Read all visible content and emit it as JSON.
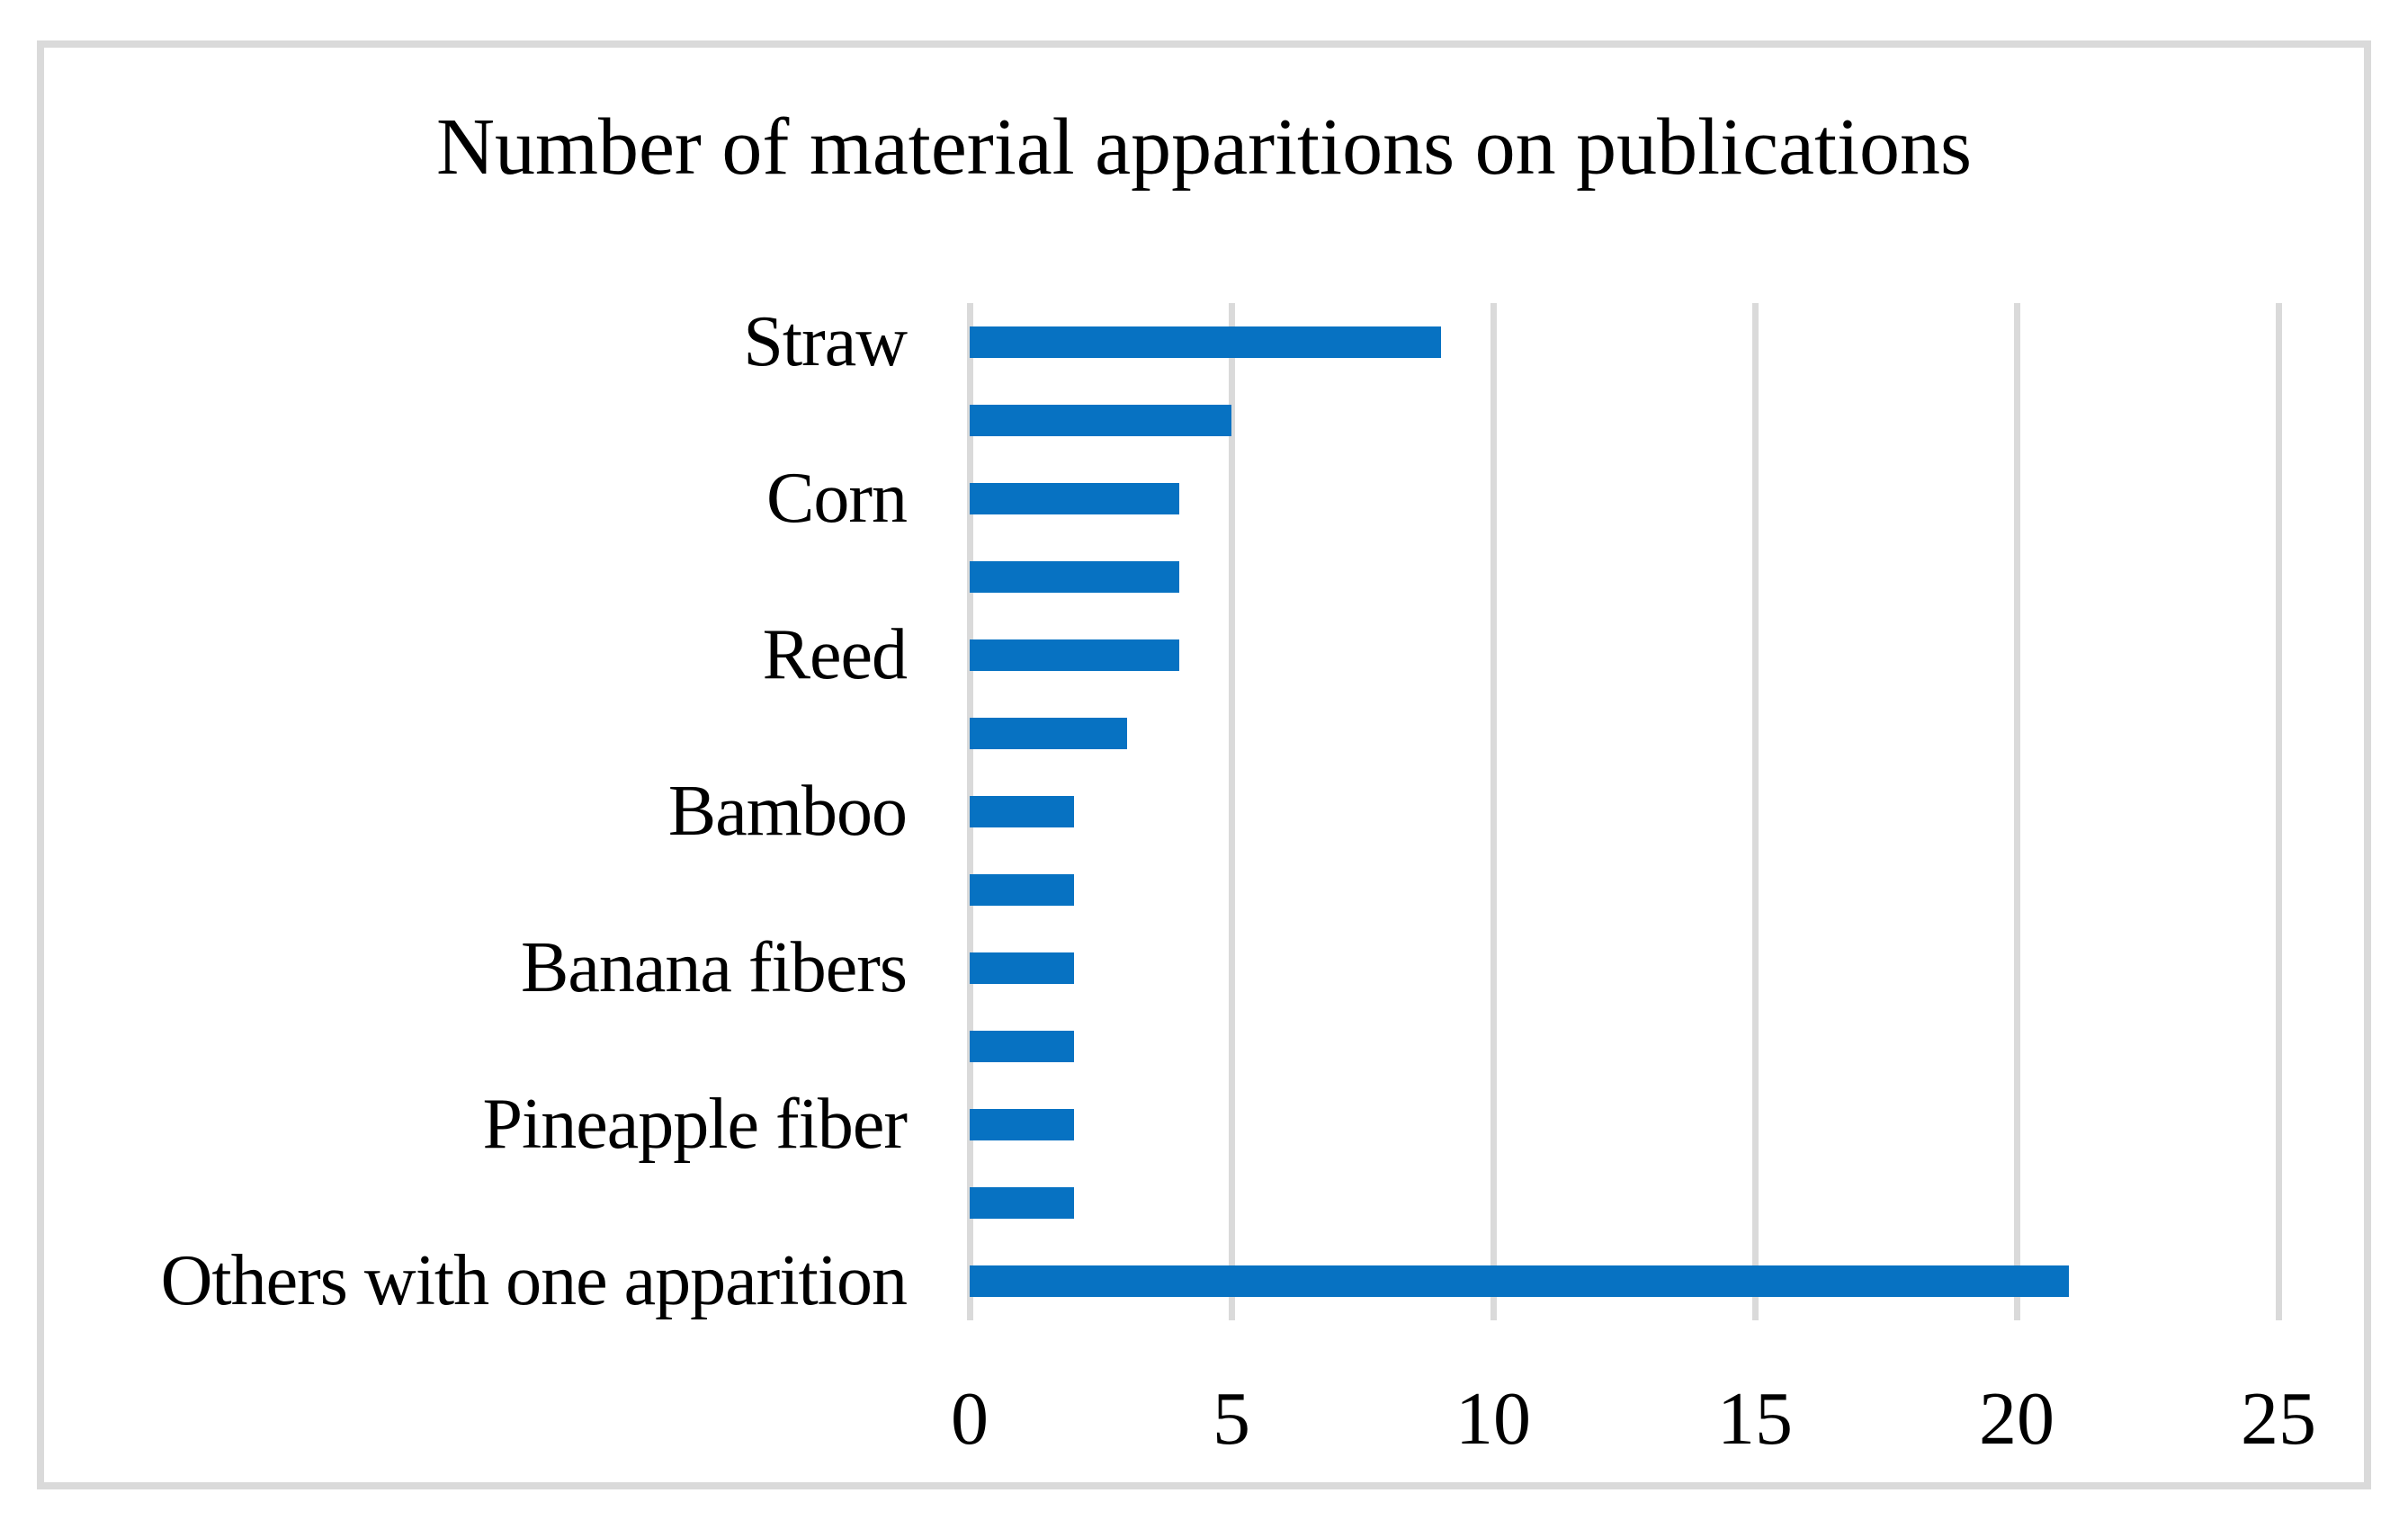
{
  "chart_data": {
    "type": "bar",
    "orientation": "horizontal",
    "title": "Number of material apparitions on publications",
    "categories": [
      "Straw",
      "",
      "Corn",
      "",
      "Reed",
      "",
      "Bamboo",
      "",
      "Banana fibers",
      "",
      "Pineapple fiber",
      "",
      "Others with one apparition"
    ],
    "values": [
      9,
      5,
      4,
      4,
      4,
      3,
      2,
      2,
      2,
      2,
      2,
      2,
      21
    ],
    "xlabel": "",
    "ylabel": "",
    "xlim": [
      0,
      25
    ],
    "x_ticks": [
      "0",
      "5",
      "10",
      "15",
      "20",
      "25"
    ],
    "grid": true,
    "legend": false,
    "colors": {
      "bar": "#0772C2",
      "gridline": "#DADADA",
      "frame_border": "#DADADA",
      "text": "#000000",
      "background": "#FFFFFF"
    }
  }
}
